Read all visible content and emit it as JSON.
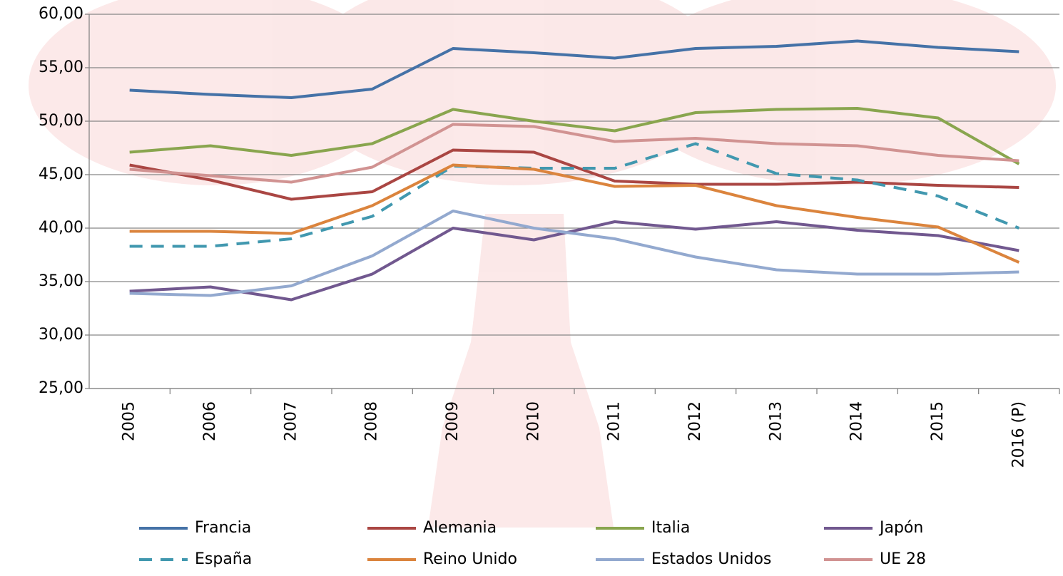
{
  "chart_data": {
    "type": "line",
    "categories": [
      "2005",
      "2006",
      "2007",
      "2008",
      "2009",
      "2010",
      "2011",
      "2012",
      "2013",
      "2014",
      "2015",
      "2016 (P)"
    ],
    "ylim": [
      25,
      60
    ],
    "yticks": [
      {
        "value": 25,
        "label": "25,00"
      },
      {
        "value": 30,
        "label": "30,00"
      },
      {
        "value": 35,
        "label": "35,00"
      },
      {
        "value": 40,
        "label": "40,00"
      },
      {
        "value": 45,
        "label": "45,00"
      },
      {
        "value": 50,
        "label": "50,00"
      },
      {
        "value": 55,
        "label": "55,00"
      },
      {
        "value": 60,
        "label": "60,00"
      }
    ],
    "grid": true,
    "legend": "bottom",
    "series": [
      {
        "name": "Francia",
        "color": "#4572a7",
        "values": [
          52.9,
          52.5,
          52.2,
          53.0,
          56.8,
          56.4,
          55.9,
          56.8,
          57.0,
          57.5,
          56.9,
          56.5
        ]
      },
      {
        "name": "Alemania",
        "color": "#aa4643",
        "values": [
          45.9,
          44.5,
          42.7,
          43.4,
          47.3,
          47.1,
          44.4,
          44.1,
          44.1,
          44.3,
          44.0,
          43.8
        ]
      },
      {
        "name": "Italia",
        "color": "#89a54e",
        "values": [
          47.1,
          47.7,
          46.8,
          47.9,
          51.1,
          50.0,
          49.1,
          50.8,
          51.1,
          51.2,
          50.3,
          46.0
        ]
      },
      {
        "name": "Japón",
        "color": "#71588f",
        "values": [
          34.1,
          34.5,
          33.3,
          35.7,
          40.0,
          38.9,
          40.6,
          39.9,
          40.6,
          39.8,
          39.3,
          37.9
        ]
      },
      {
        "name": "España",
        "color": "#4198af",
        "dashed": true,
        "values": [
          38.3,
          38.3,
          39.0,
          41.1,
          45.8,
          45.6,
          45.6,
          47.9,
          45.1,
          44.5,
          43.0,
          40.0
        ]
      },
      {
        "name": "Reino Unido",
        "color": "#db843d",
        "values": [
          39.7,
          39.7,
          39.5,
          42.1,
          45.9,
          45.5,
          43.9,
          44.0,
          42.1,
          41.0,
          40.1,
          36.8
        ]
      },
      {
        "name": "Estados Unidos",
        "color": "#93a9cf",
        "values": [
          33.9,
          33.7,
          34.6,
          37.4,
          41.6,
          40.0,
          39.0,
          37.3,
          36.1,
          35.7,
          35.7,
          35.9
        ]
      },
      {
        "name": "UE 28",
        "color": "#d19392",
        "values": [
          45.5,
          44.9,
          44.3,
          45.7,
          49.7,
          49.5,
          48.1,
          48.4,
          47.9,
          47.7,
          46.8,
          46.3
        ]
      }
    ]
  }
}
